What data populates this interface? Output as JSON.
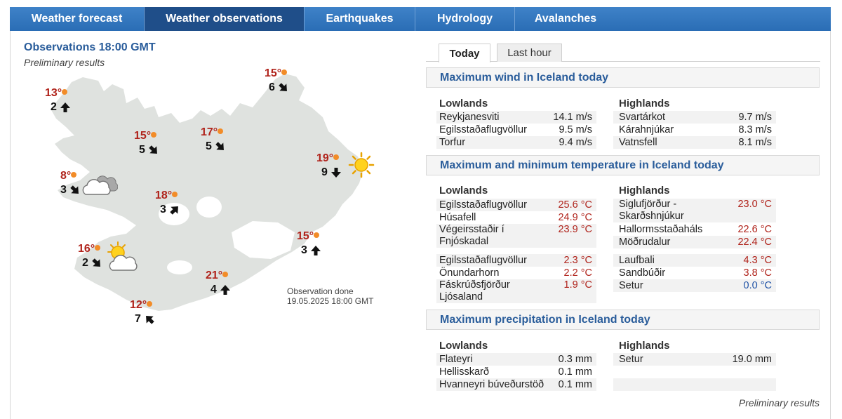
{
  "nav": {
    "tabs": [
      {
        "label": "Weather forecast",
        "active": false
      },
      {
        "label": "Weather observations",
        "active": true
      },
      {
        "label": "Earthquakes",
        "active": false
      },
      {
        "label": "Hydrology",
        "active": false
      },
      {
        "label": "Avalanches",
        "active": false
      }
    ]
  },
  "observations": {
    "title": "Observations 18:00 GMT",
    "subtitle": "Preliminary results",
    "done_line1": "Observation done",
    "done_line2": "19.05.2025 18:00 GMT",
    "stations": [
      {
        "temp": "13°",
        "wind": "2",
        "dir": "n",
        "icon": "none"
      },
      {
        "temp": "15°",
        "wind": "6",
        "dir": "se",
        "icon": "none"
      },
      {
        "temp": "15°",
        "wind": "5",
        "dir": "se",
        "icon": "none"
      },
      {
        "temp": "17°",
        "wind": "5",
        "dir": "se",
        "icon": "none"
      },
      {
        "temp": "19°",
        "wind": "9",
        "dir": "s",
        "icon": "sun-icon"
      },
      {
        "temp": "8°",
        "wind": "3",
        "dir": "se",
        "icon": "cloud-icon"
      },
      {
        "temp": "18°",
        "wind": "3",
        "dir": "ne",
        "icon": "none"
      },
      {
        "temp": "15°",
        "wind": "3",
        "dir": "n",
        "icon": "none"
      },
      {
        "temp": "16°",
        "wind": "2",
        "dir": "se",
        "icon": "partly-cloudy-icon"
      },
      {
        "temp": "21°",
        "wind": "4",
        "dir": "n",
        "icon": "none"
      },
      {
        "temp": "12°",
        "wind": "7",
        "dir": "nw",
        "icon": "none"
      }
    ]
  },
  "subtabs": {
    "today": "Today",
    "last_hour": "Last hour"
  },
  "wind": {
    "title": "Maximum wind in Iceland today",
    "lowlands_label": "Lowlands",
    "highlands_label": "Highlands",
    "lowlands": [
      {
        "name": "Reykjanesviti",
        "value": "14.1 m/s"
      },
      {
        "name": "Egilsstaðaflugvöllur",
        "value": "9.5 m/s"
      },
      {
        "name": "Torfur",
        "value": "9.4 m/s"
      }
    ],
    "highlands": [
      {
        "name": "Svartárkot",
        "value": "9.7 m/s"
      },
      {
        "name": "Kárahnjúkar",
        "value": "8.3 m/s"
      },
      {
        "name": "Vatnsfell",
        "value": "8.1 m/s"
      }
    ]
  },
  "temperature": {
    "title": "Maximum and minimum temperature in Iceland today",
    "lowlands_label": "Lowlands",
    "highlands_label": "Highlands",
    "lowlands_max": [
      {
        "name": "Egilsstaðaflugvöllur",
        "value": "25.6 °C"
      },
      {
        "name": "Húsafell",
        "value": "24.9 °C"
      },
      {
        "name": "Végeirsstaðir í",
        "name2": "Fnjóskadal",
        "value": "23.9 °C"
      }
    ],
    "highlands_max": [
      {
        "name": "Siglufjörður -",
        "name2": "Skarðshnjúkur",
        "value": "23.0 °C"
      },
      {
        "name": "Hallormsstaðaháls",
        "value": "22.6 °C"
      },
      {
        "name": "Möðrudalur",
        "value": "22.4 °C"
      }
    ],
    "lowlands_min": [
      {
        "name": "Egilsstaðaflugvöllur",
        "value": "2.3 °C"
      },
      {
        "name": "Önundarhorn",
        "value": "2.2 °C"
      },
      {
        "name": "Fáskrúðsfjörður",
        "name2": "Ljósaland",
        "value": "1.9 °C"
      }
    ],
    "highlands_min": [
      {
        "name": "Laufbali",
        "value": "4.3 °C"
      },
      {
        "name": "Sandbúðir",
        "value": "3.8 °C"
      },
      {
        "name": "Setur",
        "value": "0.0 °C"
      }
    ]
  },
  "precipitation": {
    "title": "Maximum precipitation in Iceland today",
    "lowlands_label": "Lowlands",
    "highlands_label": "Highlands",
    "lowlands": [
      {
        "name": "Flateyri",
        "value": "0.3 mm"
      },
      {
        "name": "Hellisskarð",
        "value": "0.1 mm"
      },
      {
        "name": "Hvanneyri búveðurstöð",
        "value": "0.1 mm"
      }
    ],
    "highlands": [
      {
        "name": "Setur",
        "value": "19.0 mm"
      }
    ]
  },
  "footer": {
    "preliminary": "Preliminary results"
  },
  "colors": {
    "nav_blue": "#2a6db5",
    "nav_active": "#1f4e89",
    "heading_blue": "#2a5d9b",
    "temp_red": "#b0231b",
    "cold_blue": "#1f52a6"
  }
}
